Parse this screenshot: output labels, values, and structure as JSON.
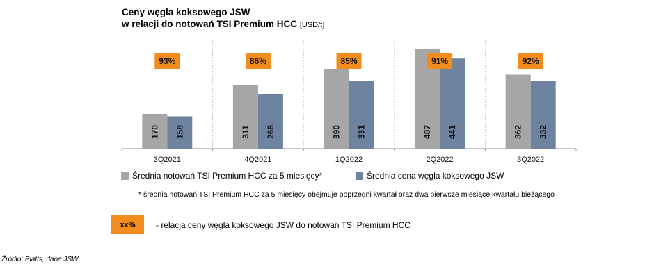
{
  "title_line1": "Ceny węgla koksowego JSW",
  "title_line2": "w relacji do notowań TSI Premium HCC",
  "title_unit": "[USD/t]",
  "chart_data": {
    "type": "bar",
    "categories": [
      "3Q2021",
      "4Q2021",
      "1Q2022",
      "2Q2022",
      "3Q2022"
    ],
    "series": [
      {
        "name": "Średnia notowań TSI Premium HCC za 5 miesięcy*",
        "values": [
          170,
          311,
          390,
          487,
          362
        ],
        "color": "#A6A6A6"
      },
      {
        "name": "Średnia cena węgla koksowego JSW",
        "values": [
          158,
          268,
          331,
          441,
          332
        ],
        "color": "#6E83A0"
      }
    ],
    "ratios": [
      "93%",
      "86%",
      "85%",
      "91%",
      "92%"
    ],
    "ylim": [
      0,
      530
    ],
    "badge_color": "#F28C1E",
    "grid": false
  },
  "legend": {
    "item1": "Średnia notowań TSI Premium HCC za 5 miesięcy*",
    "item2": "Średnia cena węgla koksowego JSW"
  },
  "footnote": "* średnia notowań TSI Premium HCC za 5 miesięcy obejmuje poprzedni kwartał oraz dwa pierwsze miesiące kwartału bieżącego",
  "key": {
    "box_label": "xx%",
    "text": "- relacja ceny węgla koksowego JSW do notowań TSI Premium HCC"
  },
  "source": "Źródło: Platts, dane JSW."
}
